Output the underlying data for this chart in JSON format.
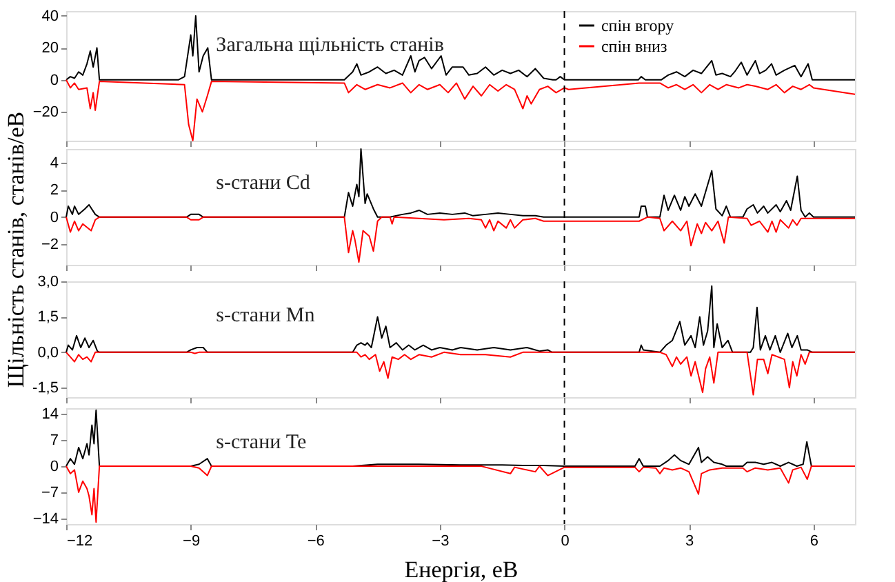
{
  "chart_data": [
    {
      "type": "line",
      "title": null,
      "annotations": [
        "Загальна щільність станів"
      ],
      "legend": "top right",
      "tick_labels": "y",
      "xlim": [
        -12,
        7
      ],
      "xticks": [
        -12,
        -9,
        -6,
        -3,
        0,
        3,
        6
      ],
      "ylim": [
        -38,
        43
      ],
      "yticks": [
        40,
        20,
        0,
        -20
      ],
      "ref_lines": [
        {
          "axis": "x",
          "value": 0,
          "label": null,
          "color": "#000000",
          "line_style": "dashed"
        }
      ],
      "series": [
        {
          "name": "спін вгору",
          "color": "#000000",
          "x": [
            -12,
            -11.9,
            -11.8,
            -11.7,
            -11.6,
            -11.5,
            -11.42,
            -11.35,
            -11.26,
            -11.2,
            -9.3,
            -9.15,
            -9.0,
            -8.95,
            -8.88,
            -8.8,
            -8.7,
            -8.59,
            -8.5,
            -5.3,
            -5.1,
            -5.0,
            -4.9,
            -4.7,
            -4.5,
            -4.3,
            -4.1,
            -3.9,
            -3.7,
            -3.6,
            -3.5,
            -3.37,
            -3.2,
            -2.97,
            -2.85,
            -2.7,
            -2.44,
            -2.3,
            -2.1,
            -1.9,
            -1.7,
            -1.5,
            -1.3,
            -1.1,
            -0.9,
            -0.7,
            -0.5,
            -0.28,
            -0.2,
            -0.1,
            0,
            1.78,
            1.85,
            1.95,
            2.33,
            2.5,
            2.7,
            2.9,
            3.1,
            3.3,
            3.55,
            3.65,
            3.8,
            4.0,
            4.1,
            4.26,
            4.4,
            4.6,
            4.7,
            4.85,
            4.99,
            5.1,
            5.3,
            5.55,
            5.7,
            5.87,
            5.97,
            7
          ],
          "values": [
            0,
            2,
            1,
            5,
            3,
            10,
            18,
            8,
            20,
            0,
            0,
            2,
            28,
            15,
            40,
            5,
            15,
            20,
            0,
            0,
            5,
            10,
            3,
            5,
            8,
            4,
            6,
            3,
            15,
            5,
            12,
            14,
            7,
            15,
            3,
            8,
            8,
            3,
            4,
            8,
            3,
            6,
            4,
            6,
            2,
            7,
            1,
            0,
            0,
            2,
            0,
            0,
            2,
            0,
            0,
            3,
            5,
            2,
            6,
            4,
            12,
            3,
            4,
            2,
            5,
            11,
            3,
            12,
            4,
            6,
            10,
            3,
            6,
            9,
            2,
            10,
            0,
            0
          ]
        },
        {
          "name": "спін вниз",
          "color": "#ff0000",
          "x": [
            -12,
            -11.9,
            -11.8,
            -11.7,
            -11.5,
            -11.42,
            -11.35,
            -11.3,
            -11.2,
            -9.15,
            -9.05,
            -8.95,
            -8.85,
            -8.72,
            -8.6,
            -8.5,
            -5.3,
            -5.2,
            -5.0,
            -4.8,
            -4.5,
            -4.2,
            -3.9,
            -3.7,
            -3.5,
            -3.3,
            -3.0,
            -2.8,
            -2.6,
            -2.4,
            -2.2,
            -2.0,
            -1.8,
            -1.6,
            -1.4,
            -1.2,
            -1.0,
            -0.9,
            -0.8,
            -0.6,
            -0.4,
            -0.2,
            0,
            0.1,
            1.8,
            2.3,
            2.5,
            2.7,
            2.9,
            3.1,
            3.3,
            3.5,
            3.7,
            3.9,
            4.2,
            4.4,
            4.6,
            4.9,
            5.1,
            5.3,
            5.5,
            5.7,
            5.9,
            6.0,
            7
          ],
          "values": [
            0,
            -5,
            -2,
            -6,
            -5,
            -18,
            -8,
            -19,
            -1,
            -3,
            -28,
            -38,
            -12,
            -20,
            -10,
            -1,
            -2,
            -8,
            -3,
            -6,
            -3,
            -5,
            -2,
            -8,
            -3,
            -6,
            -3,
            -8,
            -2,
            -12,
            -4,
            -10,
            -3,
            -7,
            -3,
            -6,
            -18,
            -10,
            -15,
            -6,
            -4,
            -8,
            -5,
            -6,
            -2,
            -2,
            -5,
            -3,
            -6,
            -3,
            -8,
            -3,
            -6,
            -3,
            -5,
            -3,
            -4,
            -6,
            -3,
            -8,
            -4,
            -6,
            -3,
            -5,
            -9
          ]
        }
      ]
    },
    {
      "type": "line",
      "annotations": [
        "s-стани Cd"
      ],
      "ylabel": "Щільність станів, станів/еВ",
      "tick_labels": "y",
      "xlim": [
        -12,
        7
      ],
      "xticks": [
        -12,
        -9,
        -6,
        -3,
        0,
        3,
        6
      ],
      "ylim": [
        -3.5,
        5
      ],
      "yticks": [
        4,
        2,
        0,
        -2
      ],
      "ref_lines": [
        {
          "axis": "x",
          "value": 0,
          "label": null,
          "color": "#000000",
          "line_style": "dashed"
        }
      ],
      "series": [
        {
          "color": "#000000",
          "x": [
            -12,
            -11.95,
            -11.85,
            -11.8,
            -11.7,
            -11.55,
            -11.45,
            -11.3,
            -11.2,
            -9.1,
            -9.0,
            -8.8,
            -8.7,
            -5.3,
            -5.2,
            -5.1,
            -5.0,
            -4.95,
            -4.9,
            -4.8,
            -4.75,
            -4.6,
            -4.5,
            -4.2,
            -3.9,
            -3.7,
            -3.5,
            -3.3,
            -3.0,
            -2.7,
            -2.4,
            -2.2,
            -1.9,
            -1.6,
            -1.3,
            -1.0,
            -0.7,
            -0.5,
            1.8,
            1.85,
            1.95,
            2.0,
            2.3,
            2.4,
            2.5,
            2.65,
            2.8,
            2.9,
            3.0,
            3.15,
            3.3,
            3.55,
            3.65,
            3.8,
            3.9,
            4.0,
            4.3,
            4.4,
            4.55,
            4.65,
            4.8,
            4.9,
            5.1,
            5.2,
            5.35,
            5.45,
            5.61,
            5.7,
            5.8,
            5.9,
            6.0,
            7
          ],
          "values": [
            0,
            0.8,
            0.2,
            0.8,
            0.2,
            0.6,
            0.9,
            0.2,
            0,
            0,
            0.2,
            0.2,
            0,
            0,
            1.8,
            0.8,
            2.4,
            1.5,
            5,
            1.0,
            1.7,
            0.6,
            0,
            0,
            0.2,
            0.3,
            0.5,
            0.2,
            0.3,
            0.2,
            0.3,
            0.1,
            0.2,
            0.3,
            0.2,
            0.1,
            0.1,
            0,
            0,
            0.8,
            0.8,
            0,
            0,
            1.6,
            0.5,
            1.6,
            0.5,
            1.5,
            0.8,
            1.7,
            0.8,
            3.4,
            0.6,
            0.1,
            0.8,
            0,
            0,
            0.6,
            0.9,
            0.3,
            0.8,
            0.3,
            0.9,
            0.4,
            1.2,
            0.5,
            3,
            0.5,
            0,
            0.3,
            0,
            0
          ]
        },
        {
          "color": "#ff0000",
          "x": [
            -12,
            -11.9,
            -11.8,
            -11.7,
            -11.6,
            -11.4,
            -11.3,
            -11.2,
            -9.1,
            -9.0,
            -8.8,
            -8.7,
            -5.3,
            -5.2,
            -5.1,
            -5.05,
            -4.95,
            -4.85,
            -4.7,
            -4.6,
            -4.5,
            -4.4,
            -4.2,
            -4.15,
            -4.1,
            -3.5,
            -2.9,
            -2.3,
            -2.0,
            -1.9,
            -1.8,
            -1.7,
            -1.6,
            -1.4,
            -1.3,
            -1.2,
            -1.0,
            -0.7,
            -0.5,
            1.8,
            2.0,
            2.3,
            2.4,
            2.6,
            2.8,
            2.95,
            3.05,
            3.2,
            3.3,
            3.4,
            3.55,
            3.7,
            3.85,
            3.95,
            4.4,
            4.5,
            4.7,
            4.9,
            5.0,
            5.1,
            5.2,
            5.4,
            5.5,
            5.6,
            5.7,
            7
          ],
          "values": [
            0,
            -1.1,
            -0.3,
            -1.0,
            -0.5,
            -1.0,
            -0.2,
            0,
            0,
            -0.2,
            -0.2,
            0,
            0,
            -2.6,
            -1.0,
            -1.6,
            -3.3,
            -1.0,
            -1.4,
            -2.5,
            -0.3,
            0,
            0,
            -0.5,
            0,
            -0.1,
            -0.2,
            -0.1,
            -0.2,
            -0.8,
            -0.2,
            -1.0,
            -0.3,
            -0.8,
            -0.2,
            -0.8,
            -0.2,
            -0.1,
            -0.3,
            -0.3,
            0,
            -0.1,
            -1.0,
            -0.3,
            -1.0,
            -0.3,
            -2.1,
            -0.5,
            -1.2,
            -0.4,
            -1.0,
            -0.3,
            -1.9,
            0,
            -0.1,
            -0.6,
            -0.3,
            -1.1,
            -0.3,
            -1.1,
            -0.2,
            -0.8,
            -0.2,
            -0.6,
            -0.1,
            -0.1
          ]
        }
      ]
    },
    {
      "type": "line",
      "annotations": [
        "s-стани Mn"
      ],
      "tick_labels": "y",
      "xlim": [
        -12,
        7
      ],
      "xticks": [
        -12,
        -9,
        -6,
        -3,
        0,
        3,
        6
      ],
      "ylim": [
        -1.9,
        3.0
      ],
      "yticks": [
        {
          "value": 3.0,
          "label": "3,0"
        },
        {
          "value": 1.5,
          "label": "1,5"
        },
        {
          "value": 0,
          "label": "0,0"
        },
        {
          "value": -1.5,
          "label": "-1,5"
        }
      ],
      "ref_lines": [
        {
          "axis": "x",
          "value": 0,
          "label": null,
          "color": "#000000",
          "line_style": "dashed"
        }
      ],
      "series": [
        {
          "color": "#000000",
          "x": [
            -12,
            -11.95,
            -11.85,
            -11.75,
            -11.65,
            -11.55,
            -11.45,
            -11.35,
            -11.25,
            -11.2,
            -9.1,
            -9.0,
            -8.85,
            -8.7,
            -8.6,
            -5.1,
            -5.0,
            -4.9,
            -4.8,
            -4.75,
            -4.65,
            -4.5,
            -4.4,
            -4.3,
            -4.2,
            -4.05,
            -3.9,
            -3.75,
            -3.6,
            -3.4,
            -3.2,
            -3.0,
            -2.7,
            -2.5,
            -2.1,
            -1.7,
            -1.3,
            -0.9,
            -0.6,
            -0.4,
            -0.3,
            1.8,
            1.85,
            1.9,
            2.3,
            2.45,
            2.6,
            2.78,
            2.9,
            3.05,
            3.15,
            3.26,
            3.35,
            3.45,
            3.55,
            3.6,
            3.68,
            3.8,
            3.94,
            4.05,
            4.48,
            4.55,
            4.64,
            4.72,
            4.84,
            4.95,
            5.08,
            5.2,
            5.38,
            5.48,
            5.61,
            5.7,
            5.85,
            5.97,
            7
          ],
          "values": [
            0,
            0.3,
            0.1,
            0.7,
            0.2,
            0.6,
            0.2,
            0.5,
            0.05,
            0,
            0,
            0.1,
            0.2,
            0.2,
            0,
            0,
            0.3,
            0.4,
            0.3,
            0.4,
            0.2,
            1.5,
            0.6,
            1.1,
            0.2,
            0.4,
            0.1,
            0.3,
            0.1,
            0.3,
            0.1,
            0.2,
            0.1,
            0.2,
            0.1,
            0.2,
            0.1,
            0.2,
            0.05,
            0.1,
            0,
            0,
            0.3,
            0.1,
            0,
            0.3,
            0.5,
            1.3,
            0.3,
            0.7,
            0.2,
            1.5,
            0.3,
            0.9,
            2.8,
            0.2,
            1.2,
            0.2,
            0.5,
            0,
            0,
            0.2,
            1.9,
            0.1,
            0.7,
            0.1,
            0.7,
            0,
            0.8,
            0.2,
            0.7,
            0.1,
            0.1,
            0,
            0
          ]
        },
        {
          "color": "#ff0000",
          "x": [
            -12,
            -11.9,
            -11.8,
            -11.7,
            -11.6,
            -11.5,
            -11.4,
            -11.3,
            -9.0,
            -8.9,
            -8.8,
            -5.0,
            -4.9,
            -4.8,
            -4.7,
            -4.55,
            -4.45,
            -4.35,
            -4.25,
            -4.15,
            -4.0,
            -3.85,
            -3.7,
            -3.5,
            -3.2,
            -2.9,
            -2.5,
            -1.9,
            -1.3,
            -1.0,
            2.3,
            2.45,
            2.6,
            2.7,
            2.8,
            2.95,
            3.05,
            3.15,
            3.33,
            3.4,
            3.5,
            3.6,
            3.7,
            4.4,
            4.55,
            4.65,
            4.8,
            4.9,
            5.0,
            5.3,
            5.42,
            5.5,
            5.6,
            5.7,
            5.8,
            5.9,
            7
          ],
          "values": [
            0,
            -0.2,
            -0.4,
            -0.1,
            -0.3,
            -0.2,
            -0.4,
            0,
            0,
            -0.05,
            0,
            0,
            -0.2,
            -0.1,
            -0.3,
            -0.1,
            -0.8,
            -0.4,
            -1.1,
            -0.2,
            -0.3,
            -0.1,
            -0.3,
            -0.1,
            -0.2,
            0,
            -0.1,
            -0.1,
            -0.2,
            0,
            0,
            -0.1,
            -0.6,
            -0.2,
            -0.5,
            -0.2,
            -1.0,
            -0.4,
            -1.7,
            -0.7,
            -0.2,
            -1.3,
            0,
            0,
            -1.8,
            -0.3,
            -0.3,
            -0.9,
            -0.1,
            -0.3,
            -1.5,
            -0.4,
            -1.0,
            -0.1,
            -0.5,
            0,
            0
          ]
        }
      ]
    },
    {
      "type": "line",
      "annotations": [
        "s-стани Te"
      ],
      "xlabel": "Енергія, еВ",
      "xlim": [
        -12,
        7
      ],
      "xticks": [
        -12,
        -9,
        -6,
        -3,
        0,
        3,
        6
      ],
      "ylim": [
        -15.5,
        15.5
      ],
      "yticks": [
        14,
        7,
        0,
        -7,
        -14
      ],
      "ref_lines": [
        {
          "axis": "x",
          "value": 0,
          "label": null,
          "color": "#000000",
          "line_style": "dashed"
        }
      ],
      "series": [
        {
          "color": "#000000",
          "x": [
            -12,
            -11.9,
            -11.8,
            -11.7,
            -11.6,
            -11.5,
            -11.45,
            -11.38,
            -11.33,
            -11.28,
            -11.2,
            -9.0,
            -8.8,
            -8.6,
            -8.5,
            -5.1,
            -4.5,
            -3.5,
            -2.5,
            -1.5,
            -1.0,
            -0.5,
            0,
            1.7,
            1.8,
            1.9,
            2.3,
            2.5,
            2.65,
            2.8,
            3.0,
            3.23,
            3.3,
            3.45,
            3.6,
            3.8,
            3.9,
            4.3,
            4.4,
            4.6,
            4.8,
            5.0,
            5.2,
            5.4,
            5.6,
            5.75,
            5.84,
            5.95,
            7
          ],
          "values": [
            0,
            2,
            0.5,
            5,
            2,
            6,
            3,
            11,
            6,
            15,
            0,
            0,
            0.5,
            2,
            0,
            0,
            0.5,
            0.5,
            0.3,
            0.3,
            0.2,
            0.2,
            0,
            0,
            2,
            0,
            0,
            1.5,
            3,
            1.5,
            0.5,
            5,
            1,
            2.5,
            1,
            0.5,
            0,
            0,
            1,
            1,
            0.5,
            1,
            0,
            1,
            0,
            0.5,
            6.5,
            0,
            0
          ]
        },
        {
          "color": "#ff0000",
          "x": [
            -12,
            -11.9,
            -11.8,
            -11.7,
            -11.6,
            -11.5,
            -11.45,
            -11.38,
            -11.33,
            -11.28,
            -11.2,
            -9.0,
            -8.8,
            -8.6,
            -8.5,
            -5.0,
            -2.0,
            -1.9,
            -1.3,
            -1.2,
            -0.7,
            -0.6,
            -0.4,
            0,
            1.7,
            1.8,
            1.9,
            2.2,
            2.3,
            2.4,
            2.6,
            2.8,
            3.0,
            3.23,
            3.3,
            3.5,
            3.8,
            4.3,
            4.4,
            4.6,
            4.9,
            5.2,
            5.4,
            5.5,
            5.7,
            5.85,
            5.95,
            7
          ],
          "values": [
            0,
            -2,
            -1,
            -7,
            -4,
            -6,
            -8,
            -13,
            -6,
            -15,
            0,
            0,
            -0.5,
            -2.5,
            0,
            0,
            0,
            -0.3,
            -2,
            -0.3,
            -1.5,
            0,
            -2.5,
            -0.3,
            -0.3,
            -1.5,
            -0.3,
            -0.5,
            -2,
            -0.5,
            -1,
            -0.5,
            -1.5,
            -7.5,
            -2,
            -1,
            -0.5,
            -0.5,
            -1.5,
            -0.5,
            -1,
            -0.5,
            -4.5,
            -1,
            -0.3,
            -3.5,
            0,
            0
          ]
        }
      ]
    }
  ]
}
